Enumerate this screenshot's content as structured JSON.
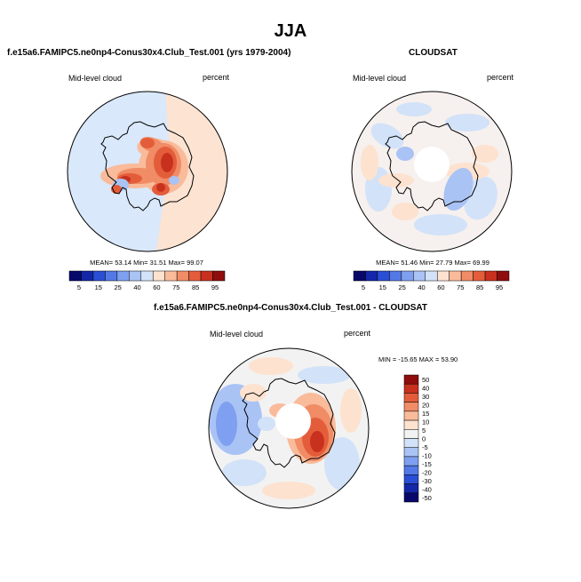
{
  "figure": {
    "title": "JJA",
    "colors": {
      "seq": [
        "#08086b",
        "#1327a8",
        "#2a4fd6",
        "#5479e6",
        "#7fa0f0",
        "#a9c3f5",
        "#d2e2f8",
        "#fde2cf",
        "#f9bb9a",
        "#f08c66",
        "#e45d3b",
        "#c8311e",
        "#8f0d0d"
      ],
      "diff": [
        "#08086b",
        "#1327a8",
        "#2a4fd6",
        "#5479e6",
        "#7fa0f0",
        "#a9c3f5",
        "#d2e2f8",
        "#f2f2f2",
        "#fde2cf",
        "#f9bb9a",
        "#f08c66",
        "#e45d3b",
        "#c8311e",
        "#8f0d0d"
      ],
      "background_model": "#d9e8fb",
      "background_obs": "#f6f0ee",
      "coast": "#000000"
    }
  },
  "chart_data": [
    {
      "type": "heatmap",
      "projection": "south-polar",
      "title": "f.e15a6.FAMIPC5.ne0np4-Conus30x4.Club_Test.001 (yrs 1979-2004)",
      "left_label": "Mid-level cloud",
      "right_label": "percent",
      "stats_text": "MEAN=  53.14  Min=  31.51  Max=  99.07",
      "colorbar": {
        "orientation": "horizontal",
        "labels": [
          "5",
          "15",
          "25",
          "40",
          "60",
          "75",
          "85",
          "95"
        ]
      }
    },
    {
      "type": "heatmap",
      "projection": "south-polar",
      "title": "CLOUDSAT",
      "left_label": "Mid-level cloud",
      "right_label": "percent",
      "stats_text": "MEAN=  51.46  Min=  27.79  Max=  69.99",
      "colorbar": {
        "orientation": "horizontal",
        "labels": [
          "5",
          "15",
          "25",
          "40",
          "60",
          "75",
          "85",
          "95"
        ]
      }
    },
    {
      "type": "heatmap",
      "projection": "south-polar",
      "title": "f.e15a6.FAMIPC5.ne0np4-Conus30x4.Club_Test.001 - CLOUDSAT",
      "left_label": "Mid-level cloud",
      "right_label": "percent",
      "stats_text": "MIN = -15.65 MAX =  53.90",
      "colorbar": {
        "orientation": "vertical",
        "labels": [
          "50",
          "40",
          "30",
          "20",
          "15",
          "10",
          "5",
          "0",
          "-5",
          "-10",
          "-15",
          "-20",
          "-30",
          "-40",
          "-50"
        ]
      }
    }
  ]
}
